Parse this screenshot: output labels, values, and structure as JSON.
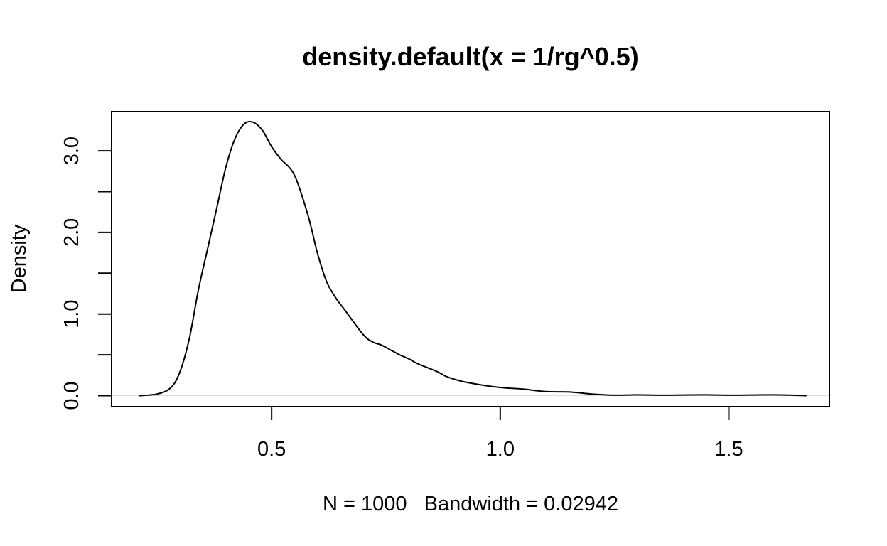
{
  "chart_data": {
    "type": "line",
    "title": "density.default(x = 1/rg^0.5)",
    "xlabel": "N = 1000   Bandwidth = 0.02942",
    "ylabel": "Density",
    "xlim": [
      0.15,
      1.72
    ],
    "ylim": [
      -0.135,
      3.48
    ],
    "x_ticks": [
      0.5,
      1.0,
      1.5
    ],
    "x_tick_labels": [
      "0.5",
      "1.0",
      "1.5"
    ],
    "y_ticks": [
      0.0,
      0.5,
      1.0,
      1.5,
      2.0,
      2.5,
      3.0
    ],
    "y_tick_labels": [
      "0.0",
      "",
      "1.0",
      "",
      "2.0",
      "",
      "3.0"
    ],
    "grid": false,
    "zero_line": true,
    "series": [
      {
        "color": "#000000",
        "x": [
          0.21,
          0.25,
          0.28,
          0.3,
          0.32,
          0.34,
          0.36,
          0.38,
          0.4,
          0.42,
          0.44,
          0.46,
          0.48,
          0.5,
          0.52,
          0.55,
          0.58,
          0.6,
          0.62,
          0.64,
          0.66,
          0.7,
          0.72,
          0.74,
          0.76,
          0.78,
          0.8,
          0.82,
          0.86,
          0.88,
          0.9,
          0.92,
          0.96,
          1.0,
          1.05,
          1.1,
          1.15,
          1.2,
          1.25,
          1.3,
          1.35,
          1.4,
          1.45,
          1.5,
          1.55,
          1.6,
          1.67
        ],
        "y": [
          0.0,
          0.02,
          0.1,
          0.3,
          0.7,
          1.3,
          1.8,
          2.3,
          2.8,
          3.15,
          3.33,
          3.35,
          3.25,
          3.05,
          2.9,
          2.7,
          2.2,
          1.75,
          1.4,
          1.2,
          1.05,
          0.75,
          0.66,
          0.62,
          0.56,
          0.5,
          0.45,
          0.39,
          0.3,
          0.24,
          0.2,
          0.17,
          0.13,
          0.1,
          0.08,
          0.05,
          0.045,
          0.02,
          0.005,
          0.01,
          0.005,
          0.008,
          0.01,
          0.005,
          0.008,
          0.01,
          0.0
        ]
      }
    ]
  }
}
